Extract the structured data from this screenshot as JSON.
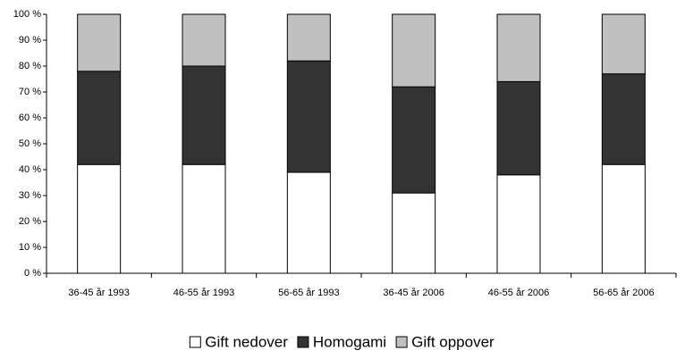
{
  "chart_data": {
    "type": "stacked_bar",
    "categories": [
      "36-45 år 1993",
      "46-55 år 1993",
      "56-65 år 1993",
      "36-45 år 2006",
      "46-55 år 2006",
      "56-65 år 2006"
    ],
    "series": [
      {
        "name": "Gift nedover",
        "color": "#ffffff",
        "values": [
          42,
          42,
          39,
          31,
          38,
          42
        ]
      },
      {
        "name": "Homogami",
        "color": "#333333",
        "values": [
          36,
          38,
          43,
          41,
          36,
          35
        ]
      },
      {
        "name": "Gift oppover",
        "color": "#c0c0c0",
        "values": [
          22,
          20,
          18,
          28,
          26,
          23
        ]
      }
    ],
    "ylim": [
      0,
      100
    ],
    "yticks": [
      {
        "value": 0,
        "label": "0 %"
      },
      {
        "value": 10,
        "label": "10 %"
      },
      {
        "value": 20,
        "label": "20 %"
      },
      {
        "value": 30,
        "label": "30 %"
      },
      {
        "value": 40,
        "label": "40 %"
      },
      {
        "value": 50,
        "label": "50 %"
      },
      {
        "value": 60,
        "label": "60 %"
      },
      {
        "value": 70,
        "label": "70 %"
      },
      {
        "value": 80,
        "label": "80 %"
      },
      {
        "value": 90,
        "label": "90 %"
      },
      {
        "value": 100,
        "label": "100 %"
      }
    ],
    "grid": false,
    "legend": "bottom"
  }
}
